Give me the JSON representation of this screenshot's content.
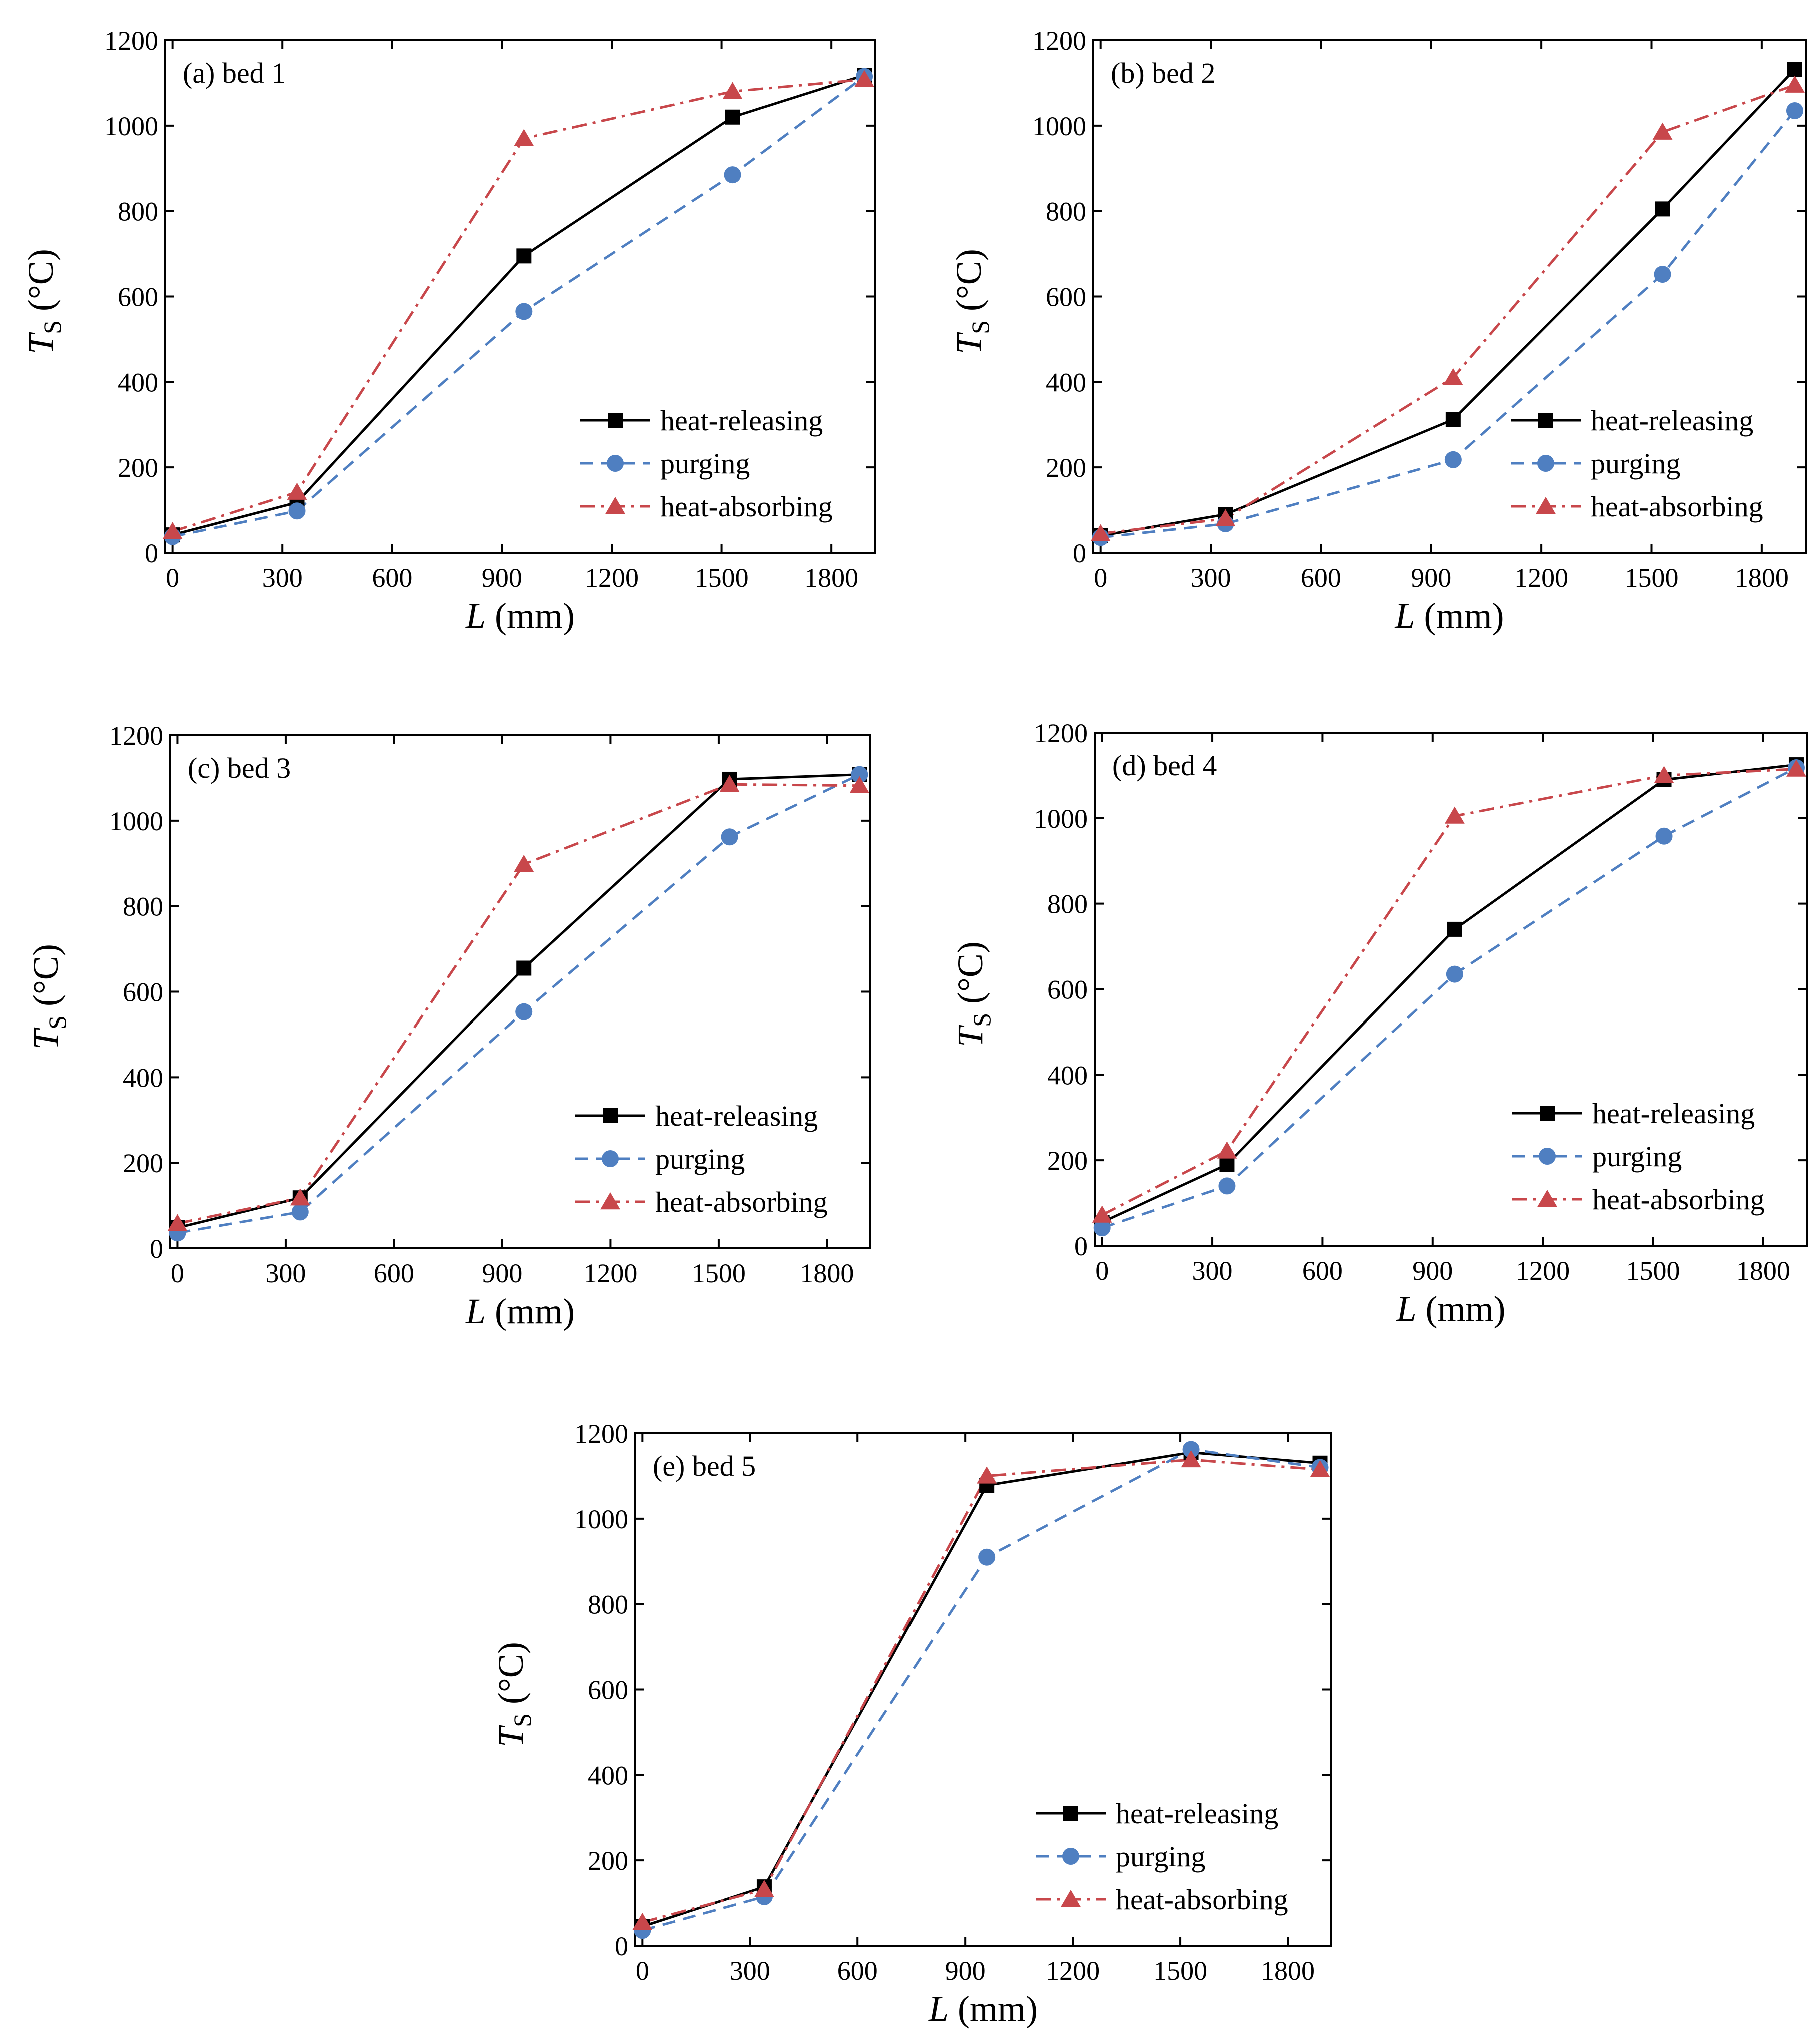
{
  "colors": {
    "heat_releasing": "#000000",
    "purging": "#4f7fc1",
    "heat_absorbing": "#c8474b",
    "axis": "#000000"
  },
  "chart_data": [
    {
      "type": "line",
      "title": "(a) bed 1",
      "xlabel_var": "L",
      "xlabel_unit": "(mm)",
      "ylabel_var": "T",
      "ylabel_sub": "S",
      "ylabel_unit": "(°C)",
      "xlim": [
        -20,
        1920
      ],
      "ylim": [
        0,
        1200
      ],
      "xticks": [
        0,
        300,
        600,
        900,
        1200,
        1500,
        1800
      ],
      "yticks": [
        0,
        200,
        400,
        600,
        800,
        1000,
        1200
      ],
      "legend_position": "lower-right",
      "x": [
        0,
        340,
        960,
        1530,
        1890
      ],
      "series": [
        {
          "name": "heat-releasing",
          "marker": "square",
          "line": "solid",
          "values": [
            42,
            118,
            695,
            1020,
            1118
          ]
        },
        {
          "name": "purging",
          "marker": "circle",
          "line": "dashed",
          "values": [
            38,
            98,
            565,
            885,
            1115
          ]
        },
        {
          "name": "heat-absorbing",
          "marker": "triangle",
          "line": "dashdot",
          "values": [
            50,
            142,
            970,
            1080,
            1108
          ]
        }
      ]
    },
    {
      "type": "line",
      "title": "(b) bed 2",
      "xlabel_var": "L",
      "xlabel_unit": "(mm)",
      "ylabel_var": "T",
      "ylabel_sub": "S",
      "ylabel_unit": "(°C)",
      "xlim": [
        -20,
        1920
      ],
      "ylim": [
        0,
        1200
      ],
      "xticks": [
        0,
        300,
        600,
        900,
        1200,
        1500,
        1800
      ],
      "yticks": [
        0,
        200,
        400,
        600,
        800,
        1000,
        1200
      ],
      "legend_position": "lower-right",
      "x": [
        0,
        340,
        960,
        1530,
        1890
      ],
      "series": [
        {
          "name": "heat-releasing",
          "marker": "square",
          "line": "solid",
          "values": [
            40,
            90,
            312,
            805,
            1132
          ]
        },
        {
          "name": "purging",
          "marker": "circle",
          "line": "dashed",
          "values": [
            36,
            68,
            218,
            652,
            1035
          ]
        },
        {
          "name": "heat-absorbing",
          "marker": "triangle",
          "line": "dashdot",
          "values": [
            45,
            80,
            410,
            985,
            1095
          ]
        }
      ]
    },
    {
      "type": "line",
      "title": "(c) bed 3",
      "xlabel_var": "L",
      "xlabel_unit": "(mm)",
      "ylabel_var": "T",
      "ylabel_sub": "S",
      "ylabel_unit": "(°C)",
      "xlim": [
        -20,
        1920
      ],
      "ylim": [
        0,
        1200
      ],
      "xticks": [
        0,
        300,
        600,
        900,
        1200,
        1500,
        1800
      ],
      "yticks": [
        0,
        200,
        400,
        600,
        800,
        1000,
        1200
      ],
      "legend_position": "lower-right",
      "x": [
        0,
        340,
        960,
        1530,
        1890
      ],
      "series": [
        {
          "name": "heat-releasing",
          "marker": "square",
          "line": "solid",
          "values": [
            48,
            118,
            655,
            1097,
            1108
          ]
        },
        {
          "name": "purging",
          "marker": "circle",
          "line": "dashed",
          "values": [
            36,
            85,
            553,
            962,
            1108
          ]
        },
        {
          "name": "heat-absorbing",
          "marker": "triangle",
          "line": "dashdot",
          "values": [
            58,
            118,
            898,
            1085,
            1082
          ]
        }
      ]
    },
    {
      "type": "line",
      "title": "(d) bed 4",
      "xlabel_var": "L",
      "xlabel_unit": "(mm)",
      "ylabel_var": "T",
      "ylabel_sub": "S",
      "ylabel_unit": "(°C)",
      "xlim": [
        -20,
        1920
      ],
      "ylim": [
        0,
        1200
      ],
      "xticks": [
        0,
        300,
        600,
        900,
        1200,
        1500,
        1800
      ],
      "yticks": [
        0,
        200,
        400,
        600,
        800,
        1000,
        1200
      ],
      "legend_position": "lower-right",
      "x": [
        0,
        340,
        960,
        1530,
        1890
      ],
      "series": [
        {
          "name": "heat-releasing",
          "marker": "square",
          "line": "solid",
          "values": [
            55,
            190,
            740,
            1090,
            1125
          ]
        },
        {
          "name": "purging",
          "marker": "circle",
          "line": "dashed",
          "values": [
            42,
            140,
            635,
            958,
            1118
          ]
        },
        {
          "name": "heat-absorbing",
          "marker": "triangle",
          "line": "dashdot",
          "values": [
            72,
            222,
            1005,
            1100,
            1115
          ]
        }
      ]
    },
    {
      "type": "line",
      "title": "(e) bed 5",
      "xlabel_var": "L",
      "xlabel_unit": "(mm)",
      "ylabel_var": "T",
      "ylabel_sub": "S",
      "ylabel_unit": "(°C)",
      "xlim": [
        -20,
        1920
      ],
      "ylim": [
        0,
        1200
      ],
      "xticks": [
        0,
        300,
        600,
        900,
        1200,
        1500,
        1800
      ],
      "yticks": [
        0,
        200,
        400,
        600,
        800,
        1000,
        1200
      ],
      "legend_position": "lower-right",
      "x": [
        0,
        340,
        960,
        1530,
        1890
      ],
      "series": [
        {
          "name": "heat-releasing",
          "marker": "square",
          "line": "solid",
          "values": [
            45,
            138,
            1078,
            1155,
            1130
          ]
        },
        {
          "name": "purging",
          "marker": "circle",
          "line": "dashed",
          "values": [
            36,
            115,
            910,
            1162,
            1120
          ]
        },
        {
          "name": "heat-absorbing",
          "marker": "triangle",
          "line": "dashdot",
          "values": [
            55,
            132,
            1100,
            1138,
            1115
          ]
        }
      ]
    }
  ]
}
